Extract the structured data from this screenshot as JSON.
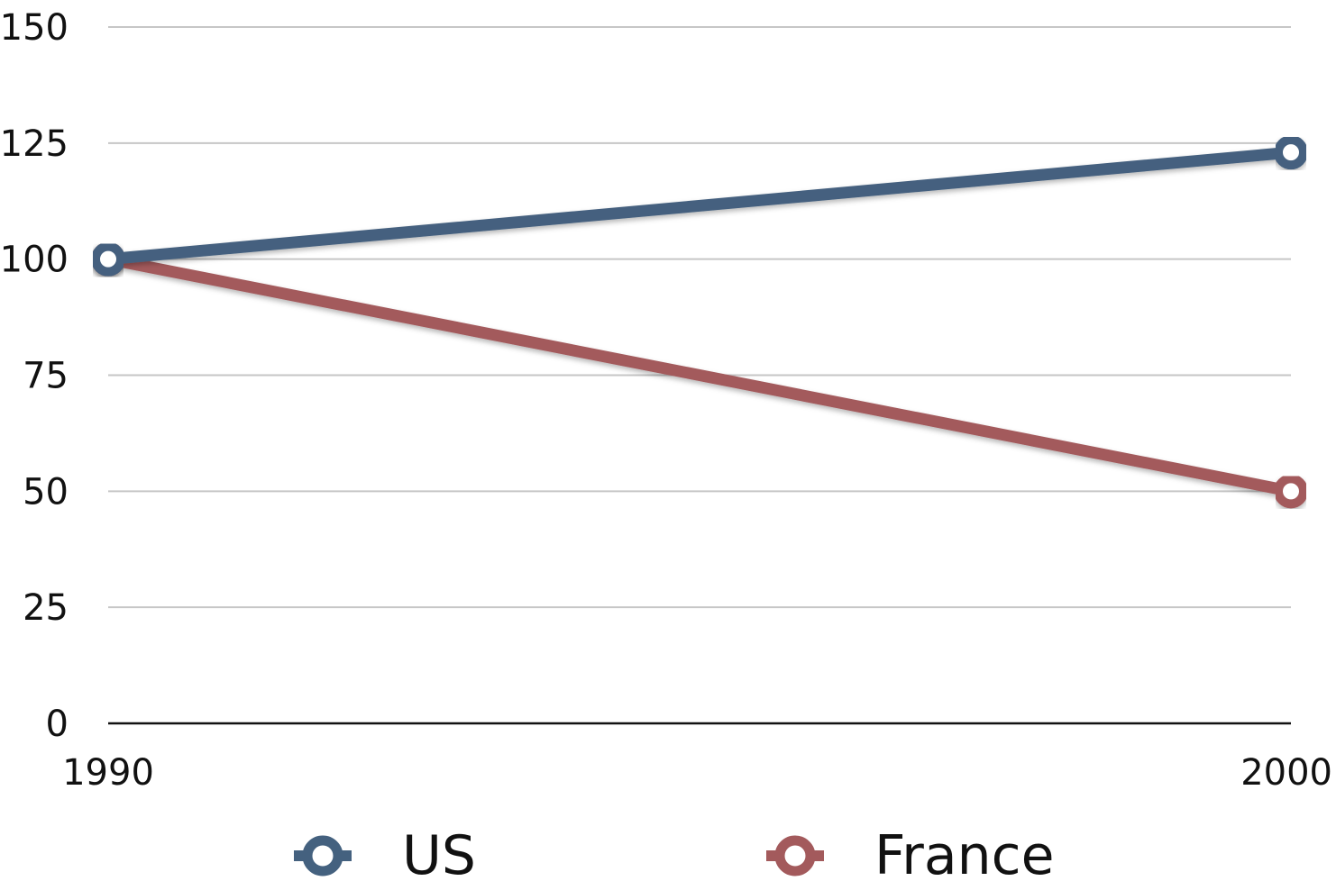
{
  "chart_data": {
    "type": "line",
    "title": "",
    "xlabel": "",
    "ylabel": "",
    "x": [
      1990,
      2000
    ],
    "x_tick_labels": [
      "1990",
      "2000"
    ],
    "y_ticks": [
      0,
      25,
      50,
      75,
      100,
      125,
      150
    ],
    "y_tick_labels": [
      "0",
      "25",
      "50",
      "75",
      "100",
      "125",
      "150"
    ],
    "ylim": [
      0,
      150
    ],
    "grid": true,
    "legend_position": "bottom",
    "series": [
      {
        "name": "US",
        "values": [
          100,
          123
        ],
        "color": "#44617f"
      },
      {
        "name": "France",
        "values": [
          100,
          50
        ],
        "color": "#a35a5c"
      }
    ]
  }
}
